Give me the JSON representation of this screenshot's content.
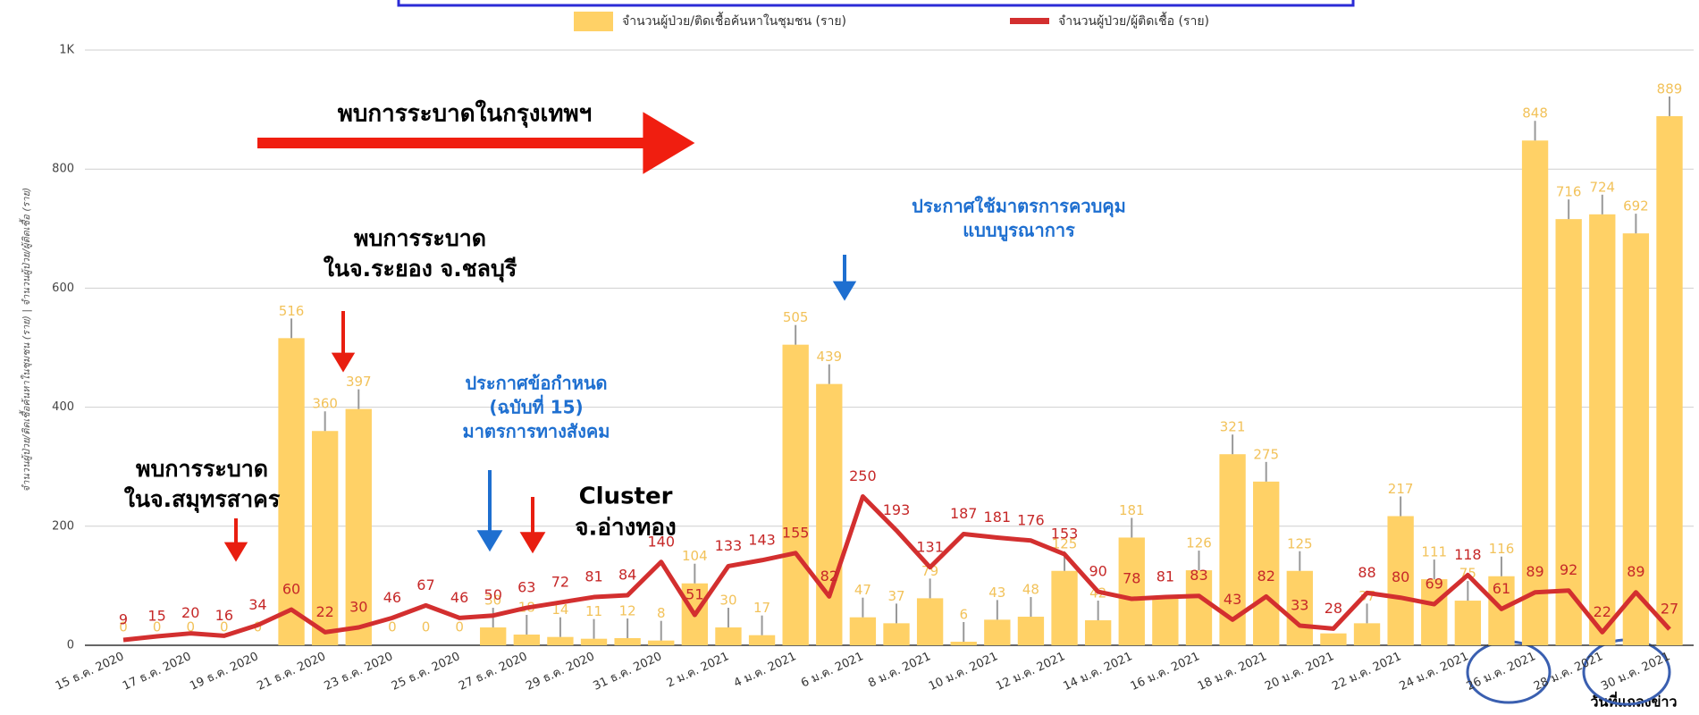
{
  "chart_data": {
    "type": "bar_line",
    "legend": {
      "position": "top"
    },
    "y_axis_label": "จำนวนผู้ป่วย/ติดเชื้อค้นหาในชุมชน (ราย) | จำนวนผู้ป่วย/ผู้ติดเชื้อ (ราย)",
    "x_axis_label": "วันที่แถลงข่าว",
    "categories": [
      "15 ธ.ค. 2020",
      null,
      "17 ธ.ค. 2020",
      null,
      "19 ธ.ค. 2020",
      null,
      "21 ธ.ค. 2020",
      null,
      "23 ธ.ค. 2020",
      null,
      "25 ธ.ค. 2020",
      null,
      "27 ธ.ค. 2020",
      null,
      "29 ธ.ค. 2020",
      null,
      "31 ธ.ค. 2020",
      null,
      "2 ม.ค. 2021",
      null,
      "4 ม.ค. 2021",
      null,
      "6 ม.ค. 2021",
      null,
      "8 ม.ค. 2021",
      null,
      "10 ม.ค. 2021",
      null,
      "12 ม.ค. 2021",
      null,
      "14 ม.ค. 2021",
      null,
      "16 ม.ค. 2021",
      null,
      "18 ม.ค. 2021",
      null,
      "20 ม.ค. 2021",
      null,
      "22 ม.ค. 2021",
      null,
      "24 ม.ค. 2021",
      null,
      "26 ม.ค. 2021",
      null,
      "28 ม.ค. 2021",
      null,
      "30 ม.ค. 2021"
    ],
    "series": [
      {
        "name": "จำนวนผู้ป่วย/ติดเชื้อค้นหาในชุมชน (ราย)",
        "kind": "bar",
        "color": "#ffd166",
        "values": [
          0,
          0,
          0,
          0,
          0,
          516,
          360,
          397,
          0,
          0,
          0,
          30,
          18,
          14,
          11,
          12,
          8,
          104,
          30,
          17,
          505,
          439,
          47,
          37,
          79,
          6,
          43,
          48,
          125,
          42,
          181,
          80,
          126,
          321,
          275,
          125,
          20,
          37,
          217,
          111,
          75,
          116,
          848,
          716,
          724,
          692,
          889
        ],
        "value_labels": [
          "0",
          "0",
          "0",
          "0",
          "0",
          "516",
          "360",
          "397",
          "0",
          "0",
          "0",
          "30",
          "18",
          "14",
          "11",
          "12",
          "8",
          "104",
          "30",
          "17",
          "505",
          "439",
          "47",
          "37",
          "79",
          "6",
          "43",
          "48",
          "125",
          "42",
          "181",
          null,
          "126",
          "321",
          "275",
          "125",
          null,
          "37",
          "217",
          "111",
          "75",
          "116",
          "848",
          "716",
          "724",
          "692",
          "889"
        ]
      },
      {
        "name": "จำนวนผู้ป่วย/ผู้ติดเชื้อ (ราย)",
        "kind": "line",
        "color": "#d32f2f",
        "values": [
          9,
          15,
          20,
          16,
          34,
          60,
          22,
          30,
          46,
          67,
          46,
          50,
          63,
          72,
          81,
          84,
          140,
          51,
          133,
          143,
          155,
          82,
          250,
          193,
          131,
          187,
          181,
          176,
          153,
          90,
          78,
          81,
          83,
          43,
          82,
          33,
          28,
          88,
          80,
          69,
          118,
          61,
          89,
          92,
          22,
          89,
          27
        ]
      }
    ],
    "ylim": [
      0,
      1000
    ],
    "yticks": [
      0,
      200,
      400,
      600,
      800,
      {
        "value": 1000,
        "label": "1K"
      }
    ],
    "grid": true,
    "annotations": [
      {
        "lines": [
          "พบการระบาดในกรุงเทพฯ"
        ],
        "color": "#000000"
      },
      {
        "lines": [
          "พบการระบาด",
          "ในจ.ระยอง จ.ชลบุรี"
        ],
        "color": "#000000"
      },
      {
        "lines": [
          "ประกาศใช้มาตรการควบคุม",
          "แบบบูรณาการ"
        ],
        "color": "#1e6fd0"
      },
      {
        "lines": [
          "ประกาศข้อกำหนด",
          "(ฉบับที่ 15)",
          "มาตรการทางสังคม"
        ],
        "color": "#1e6fd0"
      },
      {
        "lines": [
          "Cluster",
          "จ.อ่างทอง"
        ],
        "color": "#000000"
      },
      {
        "lines": [
          "พบการระบาด",
          "ในจ.สมุทรสาคร"
        ],
        "color": "#000000"
      }
    ]
  }
}
